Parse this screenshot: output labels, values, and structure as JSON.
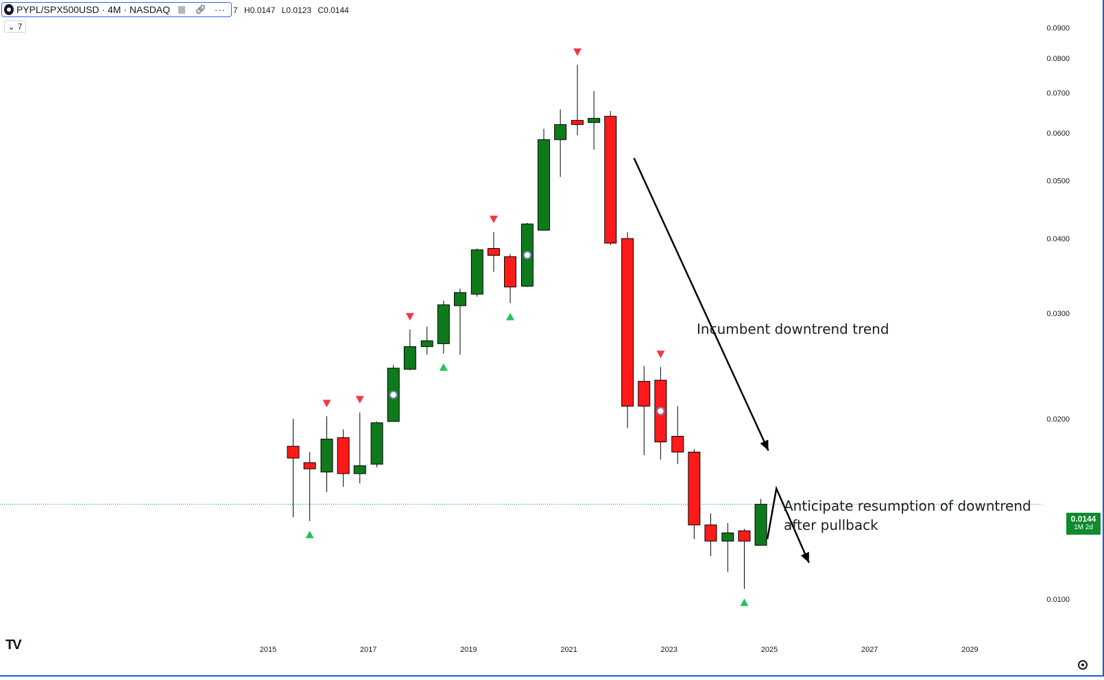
{
  "header": {
    "symbol": "PYPL/SPX500USD · 4M · NASDAQ",
    "ohlc": [
      "7",
      "H0.0147",
      "L0.0123",
      "C0.0144"
    ],
    "interval": "7"
  },
  "annotations": {
    "downtrend_label": "Incumbent downtrend trend",
    "pullback_label_1": "Anticipate resumption of downtrend",
    "pullback_label_2": "after pullback"
  },
  "price_tag": {
    "price": "0.0144",
    "countdown": "1M 2d"
  },
  "colors": {
    "up": "#0f7a1c",
    "down": "#ff1a1a",
    "marker_up": "#21c45a",
    "marker_down": "#f23645",
    "axis_text": "#131722",
    "last_price_line": "#0f8a2e"
  },
  "chart_data": {
    "type": "candlestick",
    "scale": "log",
    "y_ticks": [
      "0.0900",
      "0.0800",
      "0.0700",
      "0.0600",
      "0.0500",
      "0.0400",
      "0.0300",
      "0.0200",
      "0.0100"
    ],
    "x_ticks": [
      "2015",
      "2017",
      "2019",
      "2021",
      "2023",
      "2025",
      "2027",
      "2029"
    ],
    "candles": [
      {
        "t": 2015.5,
        "o": 0.018,
        "h": 0.02,
        "l": 0.0137,
        "c": 0.0172
      },
      {
        "t": 2015.83,
        "o": 0.0169,
        "h": 0.0176,
        "l": 0.0135,
        "c": 0.0165
      },
      {
        "t": 2016.17,
        "o": 0.0163,
        "h": 0.0202,
        "l": 0.0151,
        "c": 0.0185
      },
      {
        "t": 2016.5,
        "o": 0.0186,
        "h": 0.0192,
        "l": 0.0154,
        "c": 0.0162
      },
      {
        "t": 2016.83,
        "o": 0.0162,
        "h": 0.0205,
        "l": 0.0156,
        "c": 0.0167
      },
      {
        "t": 2017.17,
        "o": 0.0168,
        "h": 0.0198,
        "l": 0.0166,
        "c": 0.0197
      },
      {
        "t": 2017.5,
        "o": 0.0198,
        "h": 0.0246,
        "l": 0.0198,
        "c": 0.0243
      },
      {
        "t": 2017.83,
        "o": 0.0242,
        "h": 0.0282,
        "l": 0.0241,
        "c": 0.0264
      },
      {
        "t": 2018.17,
        "o": 0.0264,
        "h": 0.0285,
        "l": 0.0256,
        "c": 0.027
      },
      {
        "t": 2018.5,
        "o": 0.0267,
        "h": 0.0315,
        "l": 0.0257,
        "c": 0.031
      },
      {
        "t": 2018.83,
        "o": 0.0309,
        "h": 0.033,
        "l": 0.0256,
        "c": 0.0325
      },
      {
        "t": 2019.17,
        "o": 0.0323,
        "h": 0.0385,
        "l": 0.032,
        "c": 0.0383
      },
      {
        "t": 2019.5,
        "o": 0.0385,
        "h": 0.041,
        "l": 0.0352,
        "c": 0.0375
      },
      {
        "t": 2019.83,
        "o": 0.0373,
        "h": 0.0377,
        "l": 0.0312,
        "c": 0.0332
      },
      {
        "t": 2020.17,
        "o": 0.0333,
        "h": 0.0425,
        "l": 0.0332,
        "c": 0.0423
      },
      {
        "t": 2020.5,
        "o": 0.0413,
        "h": 0.061,
        "l": 0.0413,
        "c": 0.0585
      },
      {
        "t": 2020.83,
        "o": 0.0585,
        "h": 0.0657,
        "l": 0.0507,
        "c": 0.062
      },
      {
        "t": 2021.17,
        "o": 0.063,
        "h": 0.078,
        "l": 0.0595,
        "c": 0.062
      },
      {
        "t": 2021.5,
        "o": 0.0625,
        "h": 0.0705,
        "l": 0.0563,
        "c": 0.0635
      },
      {
        "t": 2021.83,
        "o": 0.064,
        "h": 0.0653,
        "l": 0.039,
        "c": 0.0393
      },
      {
        "t": 2022.17,
        "o": 0.04,
        "h": 0.041,
        "l": 0.0193,
        "c": 0.021
      },
      {
        "t": 2022.5,
        "o": 0.0231,
        "h": 0.0245,
        "l": 0.0174,
        "c": 0.021
      },
      {
        "t": 2022.83,
        "o": 0.0232,
        "h": 0.0244,
        "l": 0.0171,
        "c": 0.0183
      },
      {
        "t": 2023.17,
        "o": 0.0187,
        "h": 0.021,
        "l": 0.0168,
        "c": 0.0176
      },
      {
        "t": 2023.5,
        "o": 0.0176,
        "h": 0.0178,
        "l": 0.0126,
        "c": 0.0133
      },
      {
        "t": 2023.83,
        "o": 0.0133,
        "h": 0.0139,
        "l": 0.0118,
        "c": 0.0125
      },
      {
        "t": 2024.17,
        "o": 0.0125,
        "h": 0.0134,
        "l": 0.0111,
        "c": 0.0129
      },
      {
        "t": 2024.5,
        "o": 0.013,
        "h": 0.0131,
        "l": 0.0104,
        "c": 0.0125
      },
      {
        "t": 2024.83,
        "o": 0.0123,
        "h": 0.0147,
        "l": 0.0123,
        "c": 0.0144
      }
    ],
    "markers_up": [
      2015.83,
      2018.5,
      2019.83,
      2024.5
    ],
    "markers_down": [
      2016.17,
      2016.83,
      2017.83,
      2019.5,
      2021.17,
      2022.83
    ],
    "event_markers": [
      2017.5,
      2020.17,
      2022.83
    ],
    "last_price": 0.0144,
    "projection": [
      {
        "t": 2024.96,
        "p": 0.0126
      },
      {
        "t": 2025.14,
        "p": 0.0153
      },
      {
        "t": 2025.79,
        "p": 0.0115
      }
    ],
    "trend_arrow": [
      {
        "t": 2022.3,
        "p": 0.0545
      },
      {
        "t": 2024.98,
        "p": 0.0177
      }
    ]
  }
}
